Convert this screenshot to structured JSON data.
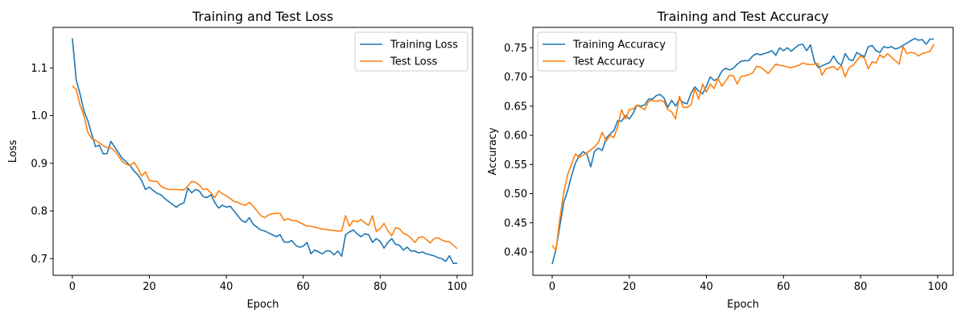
{
  "colors": {
    "training": "#1f77b4",
    "test": "#ff7f0e"
  },
  "chart_data": [
    {
      "type": "line",
      "title": "Training and Test Loss",
      "xlabel": "Epoch",
      "ylabel": "Loss",
      "xlim": [
        -5,
        104
      ],
      "ylim": [
        0.665,
        1.185
      ],
      "xticks": [
        0,
        20,
        40,
        60,
        80,
        100
      ],
      "yticks": [
        0.7,
        0.8,
        0.9,
        1.0,
        1.1
      ],
      "ytick_labels": [
        "0.7",
        "0.8",
        "0.9",
        "1.0",
        "1.1"
      ],
      "grid": false,
      "legend_position": "top-right",
      "series": [
        {
          "name": "Training Loss",
          "color": "#1f77b4",
          "values": [
            1.162,
            1.075,
            1.045,
            1.01,
            0.99,
            0.962,
            0.935,
            0.938,
            0.92,
            0.92,
            0.946,
            0.934,
            0.922,
            0.91,
            0.903,
            0.895,
            0.884,
            0.876,
            0.864,
            0.845,
            0.85,
            0.843,
            0.837,
            0.834,
            0.826,
            0.82,
            0.814,
            0.808,
            0.814,
            0.817,
            0.848,
            0.838,
            0.845,
            0.842,
            0.83,
            0.828,
            0.834,
            0.818,
            0.806,
            0.812,
            0.808,
            0.81,
            0.8,
            0.79,
            0.78,
            0.776,
            0.786,
            0.772,
            0.766,
            0.76,
            0.758,
            0.754,
            0.75,
            0.746,
            0.75,
            0.735,
            0.734,
            0.738,
            0.728,
            0.724,
            0.726,
            0.734,
            0.71,
            0.718,
            0.714,
            0.71,
            0.716,
            0.716,
            0.708,
            0.716,
            0.705,
            0.75,
            0.756,
            0.76,
            0.752,
            0.746,
            0.752,
            0.75,
            0.734,
            0.742,
            0.736,
            0.722,
            0.734,
            0.742,
            0.73,
            0.728,
            0.718,
            0.724,
            0.716,
            0.716,
            0.712,
            0.714,
            0.71,
            0.708,
            0.706,
            0.702,
            0.7,
            0.694,
            0.706,
            0.69,
            0.69
          ]
        },
        {
          "name": "Test Loss",
          "color": "#ff7f0e",
          "values": [
            1.062,
            1.055,
            1.022,
            1.0,
            0.965,
            0.952,
            0.948,
            0.943,
            0.937,
            0.933,
            0.932,
            0.926,
            0.915,
            0.903,
            0.898,
            0.895,
            0.902,
            0.89,
            0.873,
            0.882,
            0.864,
            0.862,
            0.862,
            0.852,
            0.848,
            0.845,
            0.845,
            0.845,
            0.844,
            0.844,
            0.852,
            0.862,
            0.86,
            0.854,
            0.845,
            0.846,
            0.838,
            0.828,
            0.842,
            0.836,
            0.832,
            0.826,
            0.82,
            0.818,
            0.814,
            0.812,
            0.818,
            0.81,
            0.8,
            0.79,
            0.786,
            0.792,
            0.794,
            0.795,
            0.795,
            0.78,
            0.784,
            0.78,
            0.78,
            0.776,
            0.772,
            0.768,
            0.768,
            0.766,
            0.764,
            0.762,
            0.761,
            0.76,
            0.759,
            0.758,
            0.758,
            0.79,
            0.768,
            0.78,
            0.777,
            0.782,
            0.775,
            0.77,
            0.79,
            0.757,
            0.763,
            0.774,
            0.758,
            0.748,
            0.765,
            0.763,
            0.753,
            0.75,
            0.743,
            0.734,
            0.744,
            0.746,
            0.74,
            0.733,
            0.742,
            0.744,
            0.739,
            0.736,
            0.735,
            0.728,
            0.721
          ]
        }
      ]
    },
    {
      "type": "line",
      "title": "Training and Test Accuracy",
      "xlabel": "Epoch",
      "ylabel": "Accuracy",
      "xlim": [
        -5,
        104
      ],
      "ylim": [
        0.36,
        0.785
      ],
      "xticks": [
        0,
        20,
        40,
        60,
        80,
        100
      ],
      "yticks": [
        0.4,
        0.45,
        0.5,
        0.55,
        0.6,
        0.65,
        0.7,
        0.75
      ],
      "ytick_labels": [
        "0.40",
        "0.45",
        "0.50",
        "0.55",
        "0.60",
        "0.65",
        "0.70",
        "0.75"
      ],
      "grid": false,
      "legend_position": "top-left",
      "series": [
        {
          "name": "Training Accuracy",
          "color": "#1f77b4",
          "values": [
            0.379,
            0.405,
            0.445,
            0.485,
            0.505,
            0.53,
            0.552,
            0.565,
            0.572,
            0.568,
            0.546,
            0.573,
            0.578,
            0.574,
            0.595,
            0.602,
            0.608,
            0.625,
            0.624,
            0.634,
            0.628,
            0.638,
            0.652,
            0.65,
            0.652,
            0.662,
            0.662,
            0.668,
            0.67,
            0.664,
            0.648,
            0.66,
            0.65,
            0.662,
            0.656,
            0.654,
            0.672,
            0.683,
            0.676,
            0.671,
            0.684,
            0.7,
            0.694,
            0.697,
            0.71,
            0.715,
            0.712,
            0.715,
            0.722,
            0.727,
            0.728,
            0.728,
            0.736,
            0.74,
            0.738,
            0.74,
            0.742,
            0.745,
            0.737,
            0.75,
            0.745,
            0.75,
            0.744,
            0.75,
            0.755,
            0.756,
            0.745,
            0.755,
            0.727,
            0.716,
            0.719,
            0.722,
            0.725,
            0.736,
            0.725,
            0.72,
            0.74,
            0.73,
            0.728,
            0.742,
            0.738,
            0.735,
            0.752,
            0.754,
            0.745,
            0.742,
            0.752,
            0.75,
            0.752,
            0.748,
            0.75,
            0.754,
            0.758,
            0.762,
            0.766,
            0.763,
            0.764,
            0.756,
            0.765,
            0.765
          ]
        },
        {
          "name": "Test Accuracy",
          "color": "#ff7f0e",
          "values": [
            0.411,
            0.403,
            0.458,
            0.502,
            0.532,
            0.55,
            0.568,
            0.562,
            0.566,
            0.57,
            0.575,
            0.58,
            0.588,
            0.605,
            0.59,
            0.6,
            0.596,
            0.615,
            0.644,
            0.628,
            0.644,
            0.645,
            0.652,
            0.648,
            0.644,
            0.658,
            0.66,
            0.658,
            0.66,
            0.658,
            0.644,
            0.64,
            0.628,
            0.667,
            0.648,
            0.648,
            0.652,
            0.68,
            0.662,
            0.688,
            0.674,
            0.688,
            0.68,
            0.698,
            0.684,
            0.693,
            0.703,
            0.702,
            0.688,
            0.701,
            0.702,
            0.704,
            0.707,
            0.718,
            0.717,
            0.712,
            0.706,
            0.714,
            0.722,
            0.72,
            0.719,
            0.717,
            0.716,
            0.718,
            0.72,
            0.724,
            0.722,
            0.721,
            0.722,
            0.723,
            0.703,
            0.714,
            0.716,
            0.718,
            0.712,
            0.72,
            0.7,
            0.716,
            0.72,
            0.728,
            0.736,
            0.732,
            0.714,
            0.726,
            0.724,
            0.738,
            0.733,
            0.74,
            0.734,
            0.728,
            0.722,
            0.752,
            0.74,
            0.742,
            0.741,
            0.736,
            0.74,
            0.742,
            0.744,
            0.756
          ]
        }
      ]
    }
  ]
}
